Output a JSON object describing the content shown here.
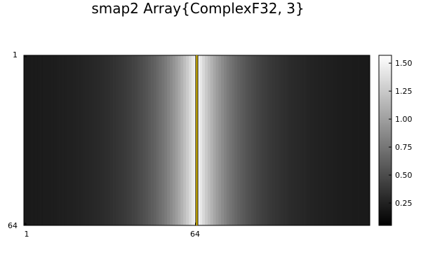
{
  "chart_data": {
    "type": "heatmap",
    "title": "smap2 Array{ComplexF32, 3}",
    "colormap": "grays",
    "x": {
      "range": [
        1,
        128
      ],
      "ticks": [
        1,
        64
      ],
      "tick_labels": [
        "1",
        "64"
      ]
    },
    "y": {
      "range": [
        1,
        64
      ],
      "ticks": [
        1,
        64
      ],
      "tick_labels": [
        "1",
        "64"
      ],
      "reversed": true
    },
    "rows": 64,
    "cols": 128,
    "profile_description_values": {
      "center_column": 64.5,
      "edge_value": 0.05,
      "peak_value": 1.57
    },
    "marker_line": {
      "x": 64.5,
      "color": "#e6c200"
    },
    "colorbar": {
      "range": [
        0.05,
        1.57
      ],
      "ticks": [
        0.25,
        0.5,
        0.75,
        1.0,
        1.25,
        1.5
      ],
      "tick_labels": [
        "0.25",
        "0.50",
        "0.75",
        "1.00",
        "1.25",
        "1.50"
      ]
    }
  }
}
